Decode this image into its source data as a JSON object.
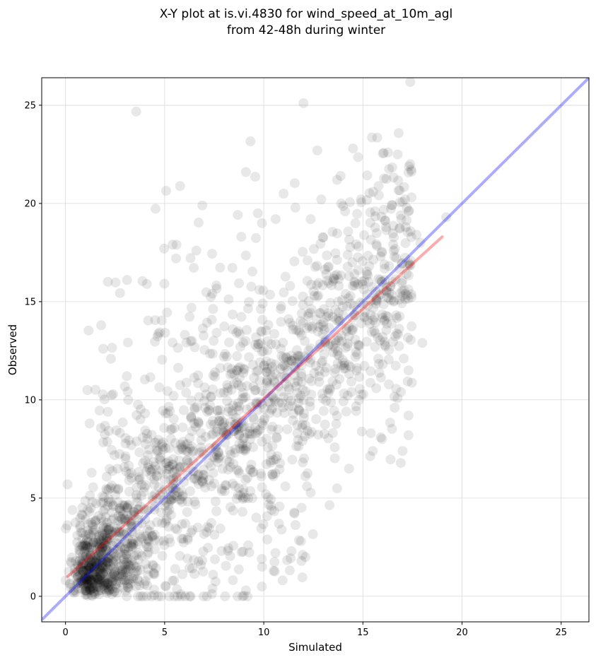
{
  "chart_data": {
    "type": "scatter",
    "title_lines": [
      "X-Y plot at is.vi.4830 for wind_speed_at_10m_agl",
      "from 42-48h during winter"
    ],
    "xlabel": "Simulated",
    "ylabel": "Observed",
    "xlim": [
      -1.2,
      26.4
    ],
    "ylim": [
      -1.3,
      26.4
    ],
    "xticks": [
      0,
      5,
      10,
      15,
      20,
      25
    ],
    "yticks": [
      0,
      5,
      10,
      15,
      20,
      25
    ],
    "grid": true,
    "point_color": "#000000",
    "point_opacity": 0.09,
    "regression_line": {
      "x": [
        0.1,
        19.0
      ],
      "y": [
        1.0,
        18.3
      ],
      "color": "#ff0000"
    },
    "identity_line": {
      "x": [
        -1.2,
        26.4
      ],
      "y": [
        -1.2,
        26.4
      ],
      "color": "#0000ff"
    },
    "highlight_points": [
      [
        12.0,
        25.1
      ],
      [
        14.5,
        22.8
      ],
      [
        12.7,
        22.7
      ],
      [
        9.1,
        21.6
      ],
      [
        13.7,
        21.2
      ],
      [
        6.9,
        19.9
      ],
      [
        11.0,
        20.5
      ],
      [
        12.9,
        20.2
      ],
      [
        13.9,
        20.0
      ],
      [
        14.9,
        20.2
      ],
      [
        17.3,
        19.6
      ],
      [
        19.2,
        19.3
      ],
      [
        9.7,
        19.5
      ],
      [
        10.6,
        19.2
      ],
      [
        14.1,
        19.6
      ],
      [
        17.9,
        18.0
      ],
      [
        17.7,
        18.4
      ],
      [
        18.0,
        12.9
      ],
      [
        17.3,
        11.5
      ],
      [
        17.3,
        9.2
      ],
      [
        17.3,
        8.2
      ],
      [
        17.0,
        7.4
      ],
      [
        16.6,
        9.6
      ],
      [
        15.4,
        8.3
      ],
      [
        15.5,
        7.4
      ],
      [
        14.3,
        6.5
      ],
      [
        13.7,
        5.5
      ],
      [
        12.1,
        2.0
      ],
      [
        11.9,
        1.8
      ],
      [
        11.4,
        2.3
      ],
      [
        10.9,
        3.4
      ],
      [
        10.4,
        4.4
      ],
      [
        9.9,
        1.9
      ],
      [
        9.9,
        0.5
      ],
      [
        9.1,
        0.3
      ],
      [
        3.1,
        16.1
      ],
      [
        4.1,
        15.9
      ],
      [
        5.4,
        17.9
      ],
      [
        5.6,
        17.9
      ],
      [
        6.6,
        17.6
      ],
      [
        1.8,
        13.8
      ],
      [
        1.9,
        12.6
      ],
      [
        1.1,
        10.5
      ],
      [
        0.1,
        5.7
      ],
      [
        16.1,
        16.1
      ],
      [
        15.2,
        16.4
      ],
      [
        14.3,
        16.3
      ],
      [
        16.5,
        16.0
      ],
      [
        16.0,
        13.2
      ],
      [
        16.1,
        12.8
      ]
    ]
  }
}
